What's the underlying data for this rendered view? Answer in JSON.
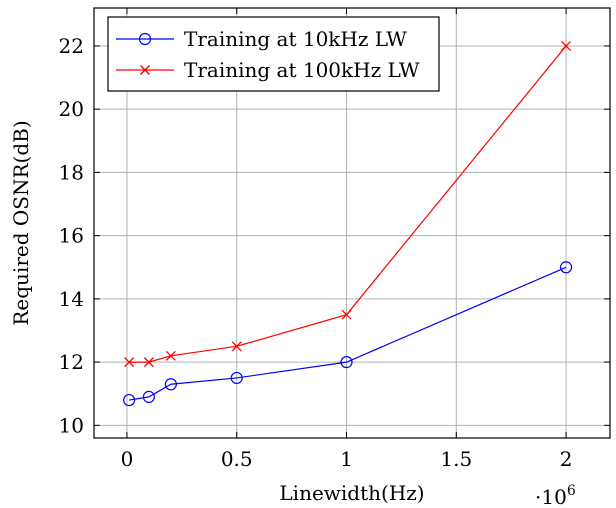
{
  "chart_data": {
    "type": "line",
    "xlabel": "Linewidth(Hz)",
    "ylabel": "Required OSNR(dB)",
    "x_scale_note": {
      "base": "·10",
      "exponent": "6"
    },
    "xlim": [
      -0.15,
      2.2
    ],
    "ylim": [
      9.6,
      23.2
    ],
    "xticks": [
      0,
      0.5,
      1,
      1.5,
      2
    ],
    "xtick_labels": [
      "0",
      "0.5",
      "1",
      "1.5",
      "2"
    ],
    "yticks": [
      10,
      12,
      14,
      16,
      18,
      20,
      22
    ],
    "ytick_labels": [
      "10",
      "12",
      "14",
      "16",
      "18",
      "20",
      "22"
    ],
    "grid": true,
    "legend_position": "top-left",
    "series": [
      {
        "name": "Training at 10kHz LW",
        "color": "#0000ff",
        "marker": "circle",
        "x": [
          0.01,
          0.1,
          0.2,
          0.5,
          1,
          2
        ],
        "y": [
          10.8,
          10.9,
          11.3,
          11.5,
          12,
          15
        ]
      },
      {
        "name": "Training at 100kHz LW",
        "color": "#ff0000",
        "marker": "cross",
        "x": [
          0.01,
          0.1,
          0.2,
          0.5,
          1,
          2
        ],
        "y": [
          12,
          12,
          12.2,
          12.5,
          13.5,
          22
        ]
      }
    ]
  }
}
